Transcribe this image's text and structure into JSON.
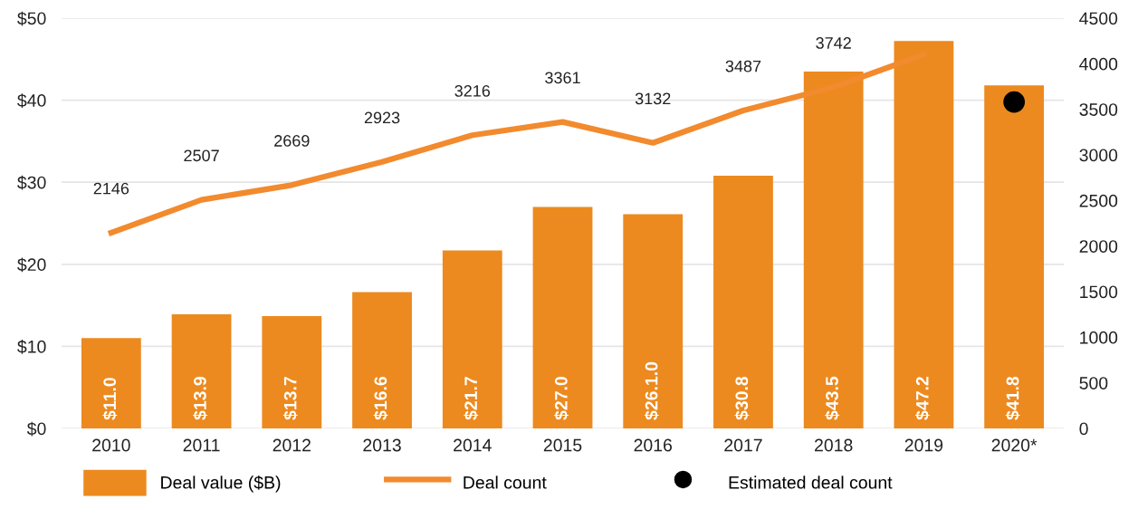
{
  "chart_data": {
    "type": "bar",
    "categories": [
      "2010",
      "2011",
      "2012",
      "2013",
      "2014",
      "2015",
      "2016",
      "2017",
      "2018",
      "2019",
      "2020*"
    ],
    "series": [
      {
        "name": "Deal value ($B)",
        "color": "#ec8a1f",
        "values": [
          11.0,
          13.9,
          13.7,
          16.6,
          21.7,
          27.0,
          26.1,
          30.8,
          43.5,
          47.2,
          41.8
        ],
        "value_labels": [
          "$11.0",
          "$13.9",
          "$13.7",
          "$16.6",
          "$21.7",
          "$27.0",
          "$26.1.0",
          "$30.8",
          "$43.5",
          "$47.2",
          "$41.8"
        ]
      },
      {
        "name": "Deal count",
        "type": "line",
        "axis": "y2",
        "color": "#f28a2e",
        "values": [
          2146,
          2507,
          2669,
          2923,
          3216,
          3361,
          3132,
          3487,
          3742,
          4100,
          null
        ],
        "value_labels": [
          "2146",
          "2507",
          "2669",
          "2923",
          "3216",
          "3361",
          "3132",
          "3487",
          "3742",
          null,
          null
        ]
      },
      {
        "name": "Estimated deal count",
        "type": "scatter",
        "axis": "y2",
        "color": "#000000",
        "x": [
          "2020*"
        ],
        "values": [
          3580
        ]
      }
    ],
    "ylim": [
      0,
      50
    ],
    "yticks": [
      {
        "value": 0,
        "label": "$0"
      },
      {
        "value": 10,
        "label": "$10"
      },
      {
        "value": 20,
        "label": "$20"
      },
      {
        "value": 30,
        "label": "$30"
      },
      {
        "value": 40,
        "label": "$40"
      },
      {
        "value": 50,
        "label": "$50"
      }
    ],
    "y2lim": [
      0,
      4500
    ],
    "y2ticks": [
      0,
      500,
      1000,
      1500,
      2000,
      2500,
      3000,
      3500,
      4000,
      4500
    ],
    "grid": "y",
    "legend": "bottom"
  }
}
